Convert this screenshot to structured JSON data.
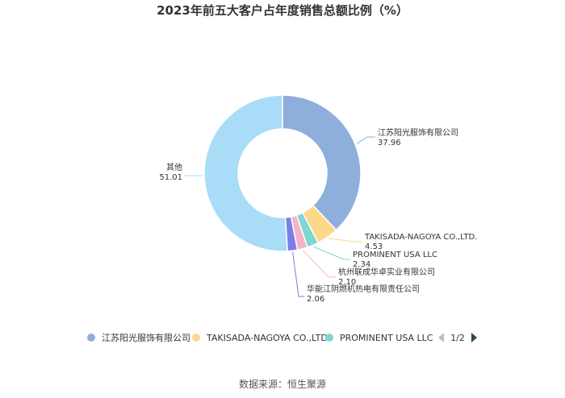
{
  "chart_data": {
    "type": "pie",
    "donut": true,
    "title": "2023年前五大客户占年度销售总额比例（%）",
    "slices": [
      {
        "label": "江苏阳光服饰有限公司",
        "value": 37.96,
        "value_text": "37.96",
        "color": "#8eaedc"
      },
      {
        "label": "TAKISADA-NAGOYA CO.,LTD.",
        "value": 4.53,
        "value_text": "4.53",
        "color": "#fbd98a"
      },
      {
        "label": "PROMINENT USA LLC",
        "value": 2.34,
        "value_text": "2.34",
        "color": "#7fd6d2"
      },
      {
        "label": "杭州联成华卓实业有限公司",
        "value": 2.1,
        "value_text": "2.10",
        "color": "#f2b4c8"
      },
      {
        "label": "华能江阴燃机热电有限责任公司",
        "value": 2.06,
        "value_text": "2.06",
        "color": "#7b7ee8"
      },
      {
        "label": "其他",
        "value": 51.01,
        "value_text": "51.01",
        "color": "#a8dcf7"
      }
    ],
    "legend": {
      "placement": "bottom",
      "visible_items": [
        "江苏阳光服饰有限公司",
        "TAKISADA-NAGOYA CO.,LTD.",
        "PROMINENT USA LLC"
      ],
      "page": "1/2"
    }
  },
  "footer": "数据来源：恒生聚源"
}
